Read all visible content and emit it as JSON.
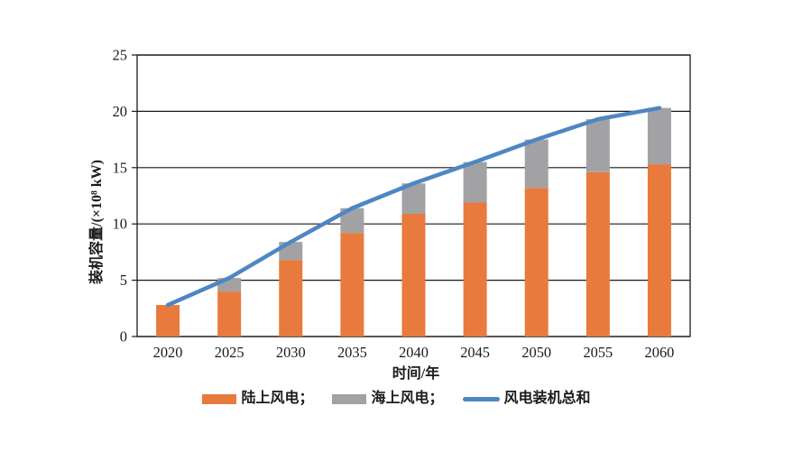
{
  "chart_data": {
    "type": "bar",
    "stacked": true,
    "categories": [
      "2020",
      "2025",
      "2030",
      "2035",
      "2040",
      "2045",
      "2050",
      "2055",
      "2060"
    ],
    "series": [
      {
        "key": "onshore-wind",
        "name": "陆上风电",
        "type": "bar",
        "color": "#E87A3D",
        "values": [
          2.8,
          4.0,
          6.8,
          9.2,
          10.9,
          11.9,
          13.2,
          14.6,
          15.3
        ]
      },
      {
        "key": "offshore-wind",
        "name": "海上风电",
        "type": "bar",
        "color": "#A2A2A4",
        "values": [
          0.0,
          1.2,
          1.6,
          2.2,
          2.7,
          3.6,
          4.3,
          4.7,
          5.0
        ]
      },
      {
        "key": "total-wind",
        "name": "风电装机总和",
        "type": "line",
        "color": "#4E86C4",
        "values": [
          2.8,
          5.2,
          8.4,
          11.4,
          13.6,
          15.5,
          17.5,
          19.3,
          20.3
        ]
      }
    ],
    "title": "",
    "xlabel": "时间/年",
    "ylabel": "装机容量/(×10⁸ kW)",
    "ylim": [
      0,
      25
    ],
    "yticks": [
      0,
      5,
      10,
      15,
      20,
      25
    ],
    "grid": "horizontal",
    "legend_position": "bottom",
    "legend": [
      {
        "label": "陆上风电；",
        "swatch": "rect",
        "color": "#E87A3D"
      },
      {
        "label": "海上风电；",
        "swatch": "rect",
        "color": "#A2A2A4"
      },
      {
        "label": "风电装机总和",
        "swatch": "line",
        "color": "#4E86C4"
      }
    ],
    "text_color": "#1b1b1b",
    "grid_color": "#1a1a1a"
  }
}
